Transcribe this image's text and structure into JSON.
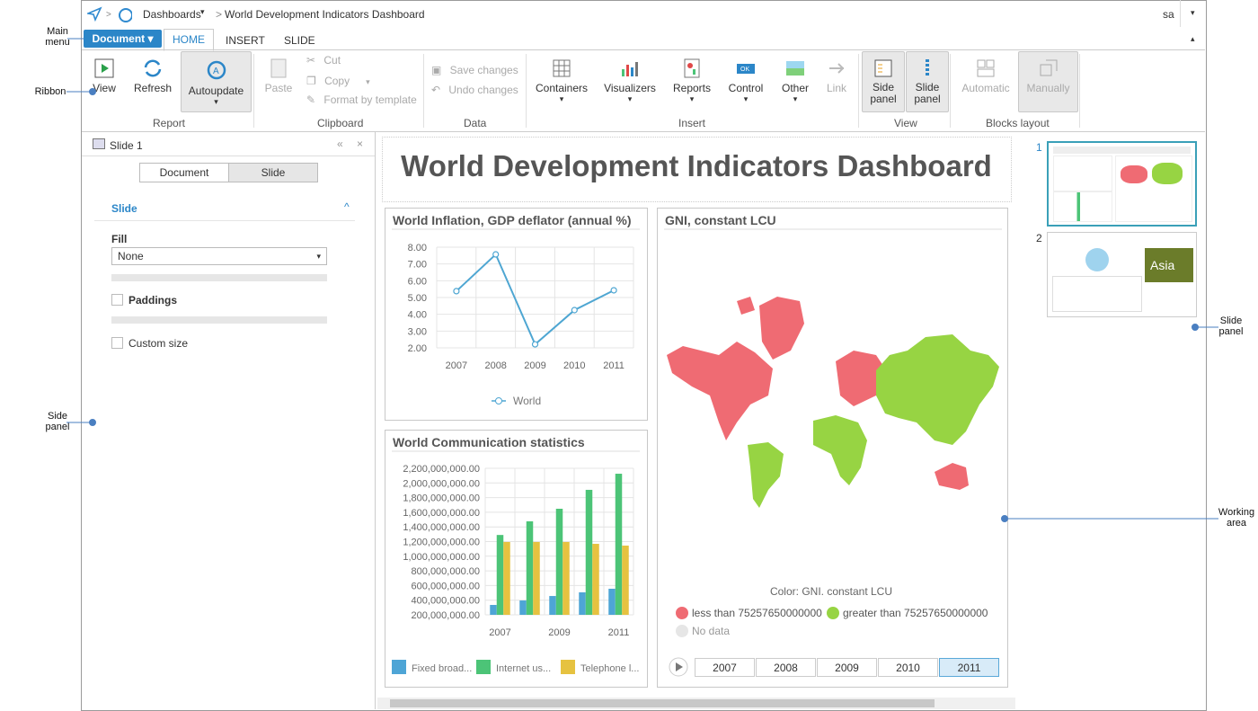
{
  "header": {
    "breadcrumb": [
      "Dashboards",
      "World Development Indicators Dashboard"
    ],
    "user": "sa"
  },
  "menu": {
    "main": "Document",
    "tabs": [
      "HOME",
      "INSERT",
      "SLIDE"
    ]
  },
  "ribbon": {
    "groups": [
      {
        "label": "Report",
        "items": [
          "View",
          "Refresh",
          "Autoupdate"
        ]
      },
      {
        "label": "Clipboard",
        "items": [
          "Paste",
          "Cut",
          "Copy",
          "Format by template"
        ]
      },
      {
        "label": "Data",
        "items": [
          "Save changes",
          "Undo changes"
        ]
      },
      {
        "label": "Insert",
        "items": [
          "Containers",
          "Visualizers",
          "Reports",
          "Control",
          "Other",
          "Link"
        ]
      },
      {
        "label": "View",
        "items": [
          "Side panel",
          "Slide panel"
        ]
      },
      {
        "label": "Blocks layout",
        "items": [
          "Automatic",
          "Manually"
        ]
      }
    ]
  },
  "side_panel": {
    "title": "Slide 1",
    "tabs": [
      "Document",
      "Slide"
    ],
    "section": "Slide",
    "fill_label": "Fill",
    "fill_value": "None",
    "options": [
      "Paddings",
      "Custom size"
    ]
  },
  "dashboard": {
    "title": "World Development Indicators Dashboard",
    "map": {
      "title": "GNI, constant LCU",
      "legend_title": "Color: GNI. constant LCU",
      "legend": [
        {
          "name": "less than 75257650000000",
          "color": "#ef6b73"
        },
        {
          "name": "greater than 75257650000000",
          "color": "#97d443"
        },
        {
          "name": "No data",
          "color": "#e6e6e6"
        }
      ],
      "timeline": [
        "2007",
        "2008",
        "2009",
        "2010",
        "2011"
      ]
    }
  },
  "chart_data": [
    {
      "type": "line",
      "title": "World Inflation, GDP deflator (annual %)",
      "categories": [
        "2007",
        "2008",
        "2009",
        "2010",
        "2011"
      ],
      "series": [
        {
          "name": "World",
          "color": "#4ea6d2",
          "values": [
            5.38,
            7.57,
            2.21,
            4.25,
            5.43
          ]
        }
      ],
      "ylim": [
        2,
        8
      ],
      "yticks": [
        {
          "value": 2,
          "label": "2.00"
        },
        {
          "value": 3,
          "label": "3.00"
        },
        {
          "value": 4,
          "label": "4.00"
        },
        {
          "value": 5,
          "label": "5.00"
        },
        {
          "value": 6,
          "label": "6.00"
        },
        {
          "value": 7,
          "label": "7.00"
        },
        {
          "value": 8,
          "label": "8.00"
        }
      ],
      "grid": true
    },
    {
      "type": "bar",
      "title": "World Communication statistics",
      "categories": [
        "2007",
        null,
        "2009",
        null,
        "2011"
      ],
      "series": [
        {
          "name": "Fixed broad...",
          "color": "#4ea5d6",
          "values": [
            335000000,
            396000000,
            457000000,
            507000000,
            556000000
          ]
        },
        {
          "name": "Internet us...",
          "color": "#4cc477",
          "values": [
            1290000000,
            1476000000,
            1648000000,
            1906000000,
            2126000000
          ]
        },
        {
          "name": "Telephone l...",
          "color": "#e6c240",
          "values": [
            1194000000,
            1194000000,
            1194000000,
            1169000000,
            1145000000
          ]
        }
      ],
      "ylim": [
        200000000,
        2200000000
      ],
      "yticks": [
        {
          "value": 200000000,
          "label": "200,000,000.00"
        },
        {
          "value": 400000000,
          "label": "400,000,000.00"
        },
        {
          "value": 600000000,
          "label": "600,000,000.00"
        },
        {
          "value": 800000000,
          "label": "800,000,000.00"
        },
        {
          "value": 1000000000,
          "label": "1,000,000,000.00"
        },
        {
          "value": 1200000000,
          "label": "1,200,000,000.00"
        },
        {
          "value": 1400000000,
          "label": "1,400,000,000.00"
        },
        {
          "value": 1600000000,
          "label": "1,600,000,000.00"
        },
        {
          "value": 1800000000,
          "label": "1,800,000,000.00"
        },
        {
          "value": 2000000000,
          "label": "2,000,000,000.00"
        },
        {
          "value": 2200000000,
          "label": "2,200,000,000.00"
        }
      ],
      "grid": true
    }
  ],
  "slides": {
    "numbers": [
      "1",
      "2"
    ],
    "thumbnail_text": "Asia"
  },
  "callouts": [
    "Main menu",
    "Ribbon",
    "Side panel",
    "Slide panel",
    "Working area"
  ]
}
